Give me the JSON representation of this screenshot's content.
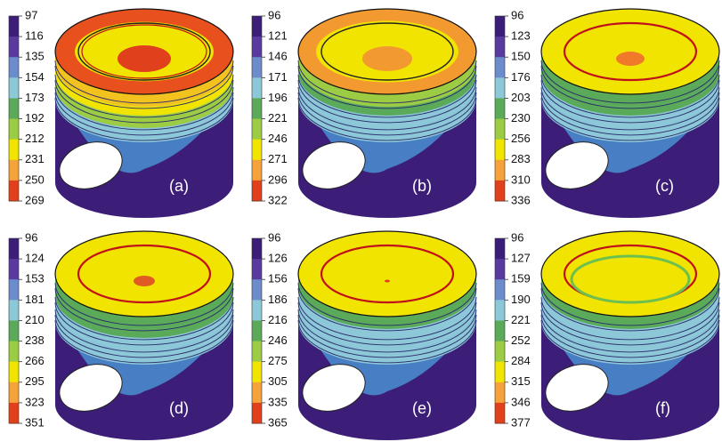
{
  "panels": [
    {
      "label": "(a)",
      "ticks": [
        97,
        116,
        135,
        154,
        173,
        192,
        212,
        231,
        250,
        269
      ]
    },
    {
      "label": "(b)",
      "ticks": [
        96,
        121,
        146,
        171,
        196,
        221,
        246,
        271,
        296,
        322
      ]
    },
    {
      "label": "(c)",
      "ticks": [
        96,
        123,
        150,
        176,
        203,
        230,
        256,
        283,
        310,
        336
      ]
    },
    {
      "label": "(d)",
      "ticks": [
        96,
        124,
        153,
        181,
        210,
        238,
        266,
        295,
        323,
        351
      ]
    },
    {
      "label": "(e)",
      "ticks": [
        96,
        126,
        156,
        186,
        216,
        246,
        275,
        305,
        335,
        365
      ]
    },
    {
      "label": "(f)",
      "ticks": [
        96,
        127,
        159,
        190,
        221,
        252,
        284,
        315,
        346,
        377
      ]
    }
  ]
}
